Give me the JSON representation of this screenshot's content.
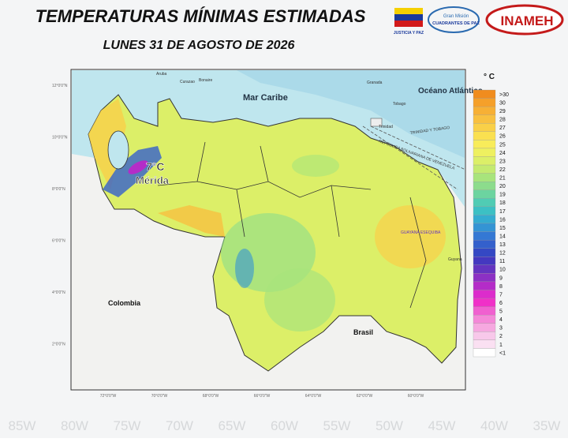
{
  "header": {
    "title": "TEMPERATURAS MÍNIMAS ESTIMADAS",
    "subtitle": "LUNES 31 DE AGOSTO DE 2026",
    "logos": [
      "JUSTICIA Y PAZ",
      "Gran Misión",
      "CUADRANTES DE PAZ",
      "INAMEH"
    ]
  },
  "map": {
    "labels": {
      "sea": "Mar Caribe",
      "ocean": "Océano Atlántico",
      "colombia": "Colombia",
      "brasil": "Brasil",
      "min_temp": "7°C",
      "city": "Mérida",
      "aruba": "Aruba",
      "curazao": "Curazao",
      "bonaire": "Bonaire",
      "granada": "Granada",
      "trinidad": "Trinidad",
      "tobago": "Tobago",
      "tt": "TRINIDAD Y TOBAGO",
      "vzla": "REPÚBLICA BOLIVARIANA DE VENEZUELA",
      "esequiba": "GUAYANA ESEQUIBA",
      "guyana": "Guyana"
    },
    "lat_labels": [
      "12°0'0\"N",
      "10°0'0\"N",
      "8°0'0\"N",
      "6°0'0\"N",
      "4°0'0\"N",
      "2°0'0\"N"
    ],
    "lon_labels": [
      "72°0'0\"W",
      "70°0'0\"W",
      "68°0'0\"W",
      "66°0'0\"W",
      "64°0'0\"W",
      "62°0'0\"W",
      "60°0'0\"W"
    ]
  },
  "legend": {
    "title": "° C",
    "items": [
      {
        "label": ">30",
        "color": "#f08c1e"
      },
      {
        "label": "30",
        "color": "#f5a02a"
      },
      {
        "label": "29",
        "color": "#f7b035"
      },
      {
        "label": "28",
        "color": "#f8c040"
      },
      {
        "label": "27",
        "color": "#f9d048"
      },
      {
        "label": "26",
        "color": "#fae050"
      },
      {
        "label": "25",
        "color": "#f8ec5a"
      },
      {
        "label": "24",
        "color": "#eef060"
      },
      {
        "label": "23",
        "color": "#dcef68"
      },
      {
        "label": "22",
        "color": "#c4ea70"
      },
      {
        "label": "21",
        "color": "#a8e47c"
      },
      {
        "label": "20",
        "color": "#8cdc8c"
      },
      {
        "label": "19",
        "color": "#6cd4a0"
      },
      {
        "label": "18",
        "color": "#50ccb4"
      },
      {
        "label": "17",
        "color": "#3cc0c4"
      },
      {
        "label": "16",
        "color": "#34acd0"
      },
      {
        "label": "15",
        "color": "#3494d4"
      },
      {
        "label": "14",
        "color": "#3478d4"
      },
      {
        "label": "13",
        "color": "#3460cc"
      },
      {
        "label": "12",
        "color": "#3448c4"
      },
      {
        "label": "11",
        "color": "#4438c0"
      },
      {
        "label": "10",
        "color": "#6434c0"
      },
      {
        "label": "9",
        "color": "#8c30c4"
      },
      {
        "label": "8",
        "color": "#b42cc8"
      },
      {
        "label": "7",
        "color": "#dc2ccc"
      },
      {
        "label": "6",
        "color": "#f030c8"
      },
      {
        "label": "5",
        "color": "#f060d0"
      },
      {
        "label": "4",
        "color": "#f488d8"
      },
      {
        "label": "3",
        "color": "#f6a8e0"
      },
      {
        "label": "2",
        "color": "#f8c8ea"
      },
      {
        "label": "1",
        "color": "#fae0f2"
      },
      {
        "label": "<1",
        "color": "#ffffff"
      }
    ]
  },
  "background_lon": [
    "85W",
    "80W",
    "75W",
    "70W",
    "65W",
    "60W",
    "55W",
    "50W",
    "45W",
    "40W",
    "35W"
  ]
}
